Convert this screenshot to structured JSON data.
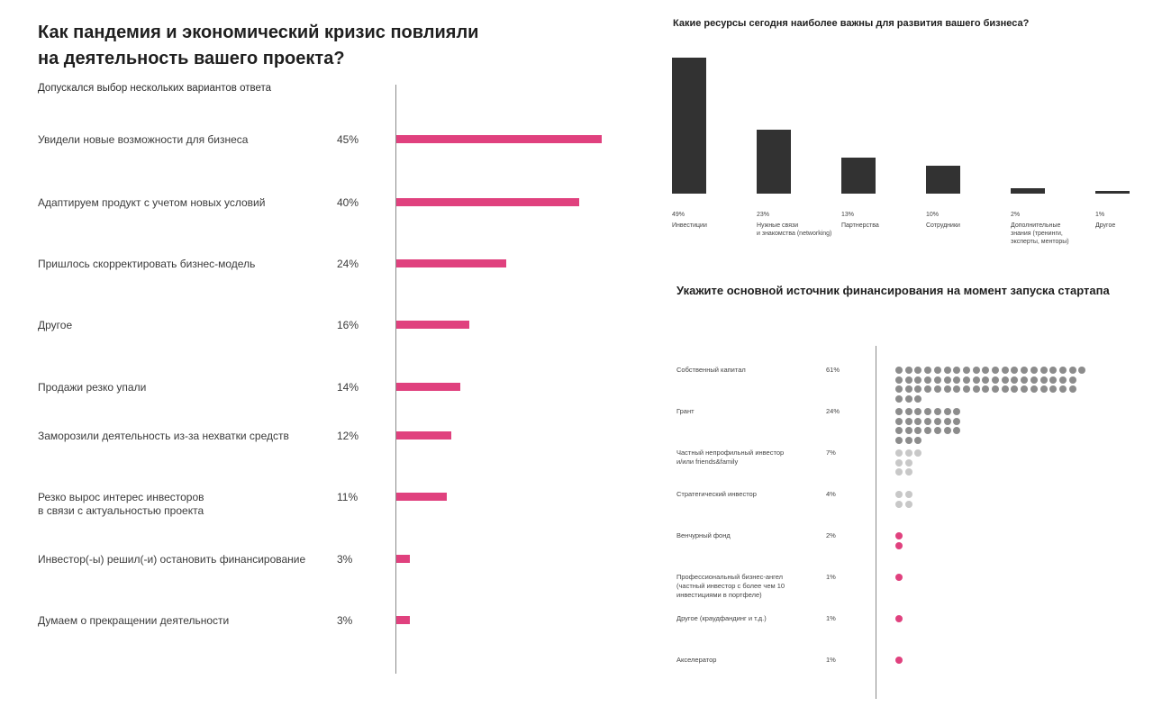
{
  "left": {
    "title": "Как пандемия и экономический кризис повлияли\nна деятельность вашего проекта?",
    "note": "Допускался выбор нескольких вариантов ответа"
  },
  "top_right": {
    "title": "Какие ресурсы сегодня наиболее важны для развития вашего бизнеса?"
  },
  "bottom_right": {
    "title": "Укажите основной источник финансирования на момент запуска стартапа"
  },
  "colors": {
    "accent": "#e0417e",
    "dark": "#323232",
    "grey": "#8c8c8c",
    "light": "#c8c8c8",
    "axis": "#8a8a8a"
  },
  "chart_data": [
    {
      "type": "bar",
      "orientation": "horizontal",
      "title": "Как пандемия и экономический кризис повлияли на деятельность вашего проекта?",
      "subtitle": "Допускался выбор нескольких вариантов ответа",
      "categories": [
        "Увидели новые возможности для бизнеса",
        "Адаптируем продукт с учетом новых условий",
        "Пришлось скорректировать бизнес-модель",
        "Другое",
        "Продажи резко упали",
        "Заморозили деятельность из-за нехватки средств",
        "Резко вырос интерес инвесторов\nв связи с актуальностью проекта",
        "Инвестор(-ы) решил(-и) остановить финансирование",
        "Думаем о прекращении деятельности"
      ],
      "values": [
        45,
        40,
        24,
        16,
        14,
        12,
        11,
        3,
        3
      ],
      "value_labels": [
        "45%",
        "40%",
        "24%",
        "16%",
        "14%",
        "12%",
        "11%",
        "3%",
        "3%"
      ],
      "color": "#e0417e"
    },
    {
      "type": "bar",
      "orientation": "vertical",
      "title": "Какие ресурсы сегодня наиболее важны для развития вашего бизнеса?",
      "categories": [
        "Инвестиции",
        "Нужные связи\nи знакомства (networking)",
        "Партнерства",
        "Сотрудники",
        "Дополнительные\nзнания (тренинги,\nэксперты, менторы)",
        "Другое"
      ],
      "values": [
        49,
        23,
        13,
        10,
        2,
        1
      ],
      "value_labels": [
        "49%",
        "23%",
        "13%",
        "10%",
        "2%",
        "1%"
      ],
      "color": "#323232"
    },
    {
      "type": "dot",
      "title": "Укажите основной источник финансирования на момент запуска стартапа",
      "categories": [
        "Собственный капитал",
        "Грант",
        "Частный непрофильный инвестор\nи/или friends&family",
        "Стратегический инвестор",
        "Венчурный фонд",
        "Профессиональный бизнес-ангел\n(частный инвестор с более чем 10\nинвестициями в портфеле)",
        "Другое (краудфандинг и т.д.)",
        "Акселератор"
      ],
      "values": [
        61,
        24,
        7,
        4,
        2,
        1,
        1,
        1
      ],
      "value_labels": [
        "61%",
        "24%",
        "7%",
        "4%",
        "2%",
        "1%",
        "1%",
        "1%"
      ],
      "dot_colors": [
        "#8c8c8c",
        "#8c8c8c",
        "#c8c8c8",
        "#c8c8c8",
        "#e0417e",
        "#e0417e",
        "#e0417e",
        "#e0417e"
      ]
    }
  ]
}
